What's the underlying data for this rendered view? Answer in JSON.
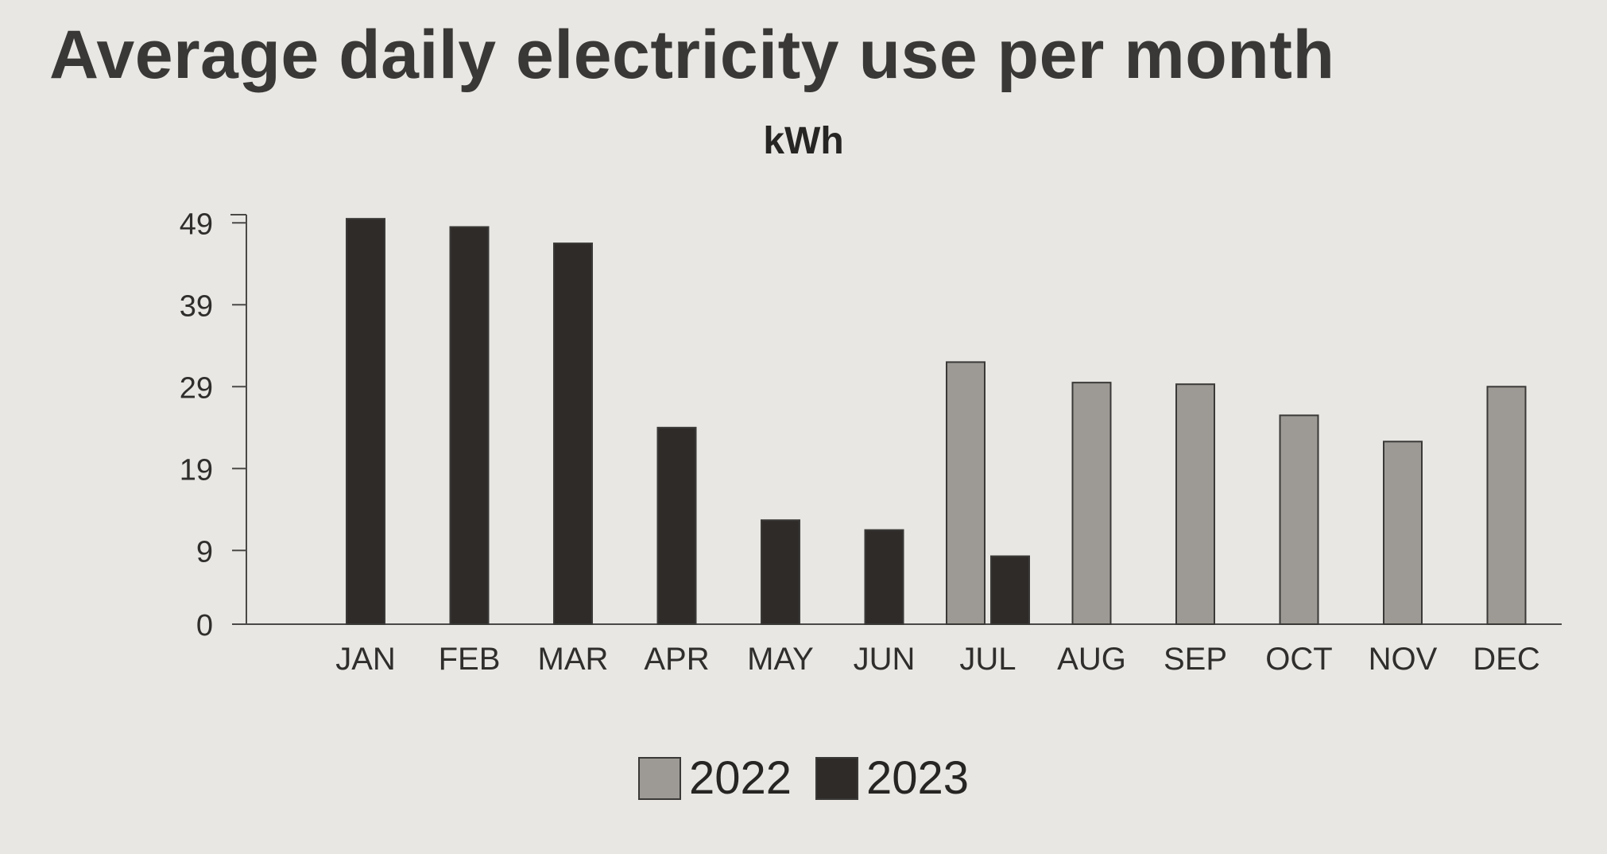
{
  "chart_data": {
    "type": "bar",
    "title": "Average daily electricity use per month",
    "subtitle": "kWh",
    "xlabel": "",
    "ylabel": "",
    "categories": [
      "JAN",
      "FEB",
      "MAR",
      "APR",
      "MAY",
      "JUN",
      "JUL",
      "AUG",
      "SEP",
      "OCT",
      "NOV",
      "DEC"
    ],
    "yticks": [
      0,
      9,
      19,
      29,
      39,
      49
    ],
    "ylim": [
      0,
      50
    ],
    "grid": false,
    "legend": "bottom-center",
    "series": [
      {
        "name": "2022",
        "color": "#9d9a95",
        "values": [
          null,
          null,
          null,
          null,
          null,
          null,
          32,
          29.5,
          29.3,
          25.5,
          22.3,
          29
        ]
      },
      {
        "name": "2023",
        "color": "#2e2b29",
        "values": [
          49.5,
          48.5,
          46.5,
          24,
          12.7,
          11.5,
          8.3,
          null,
          null,
          null,
          null,
          null
        ]
      }
    ]
  }
}
